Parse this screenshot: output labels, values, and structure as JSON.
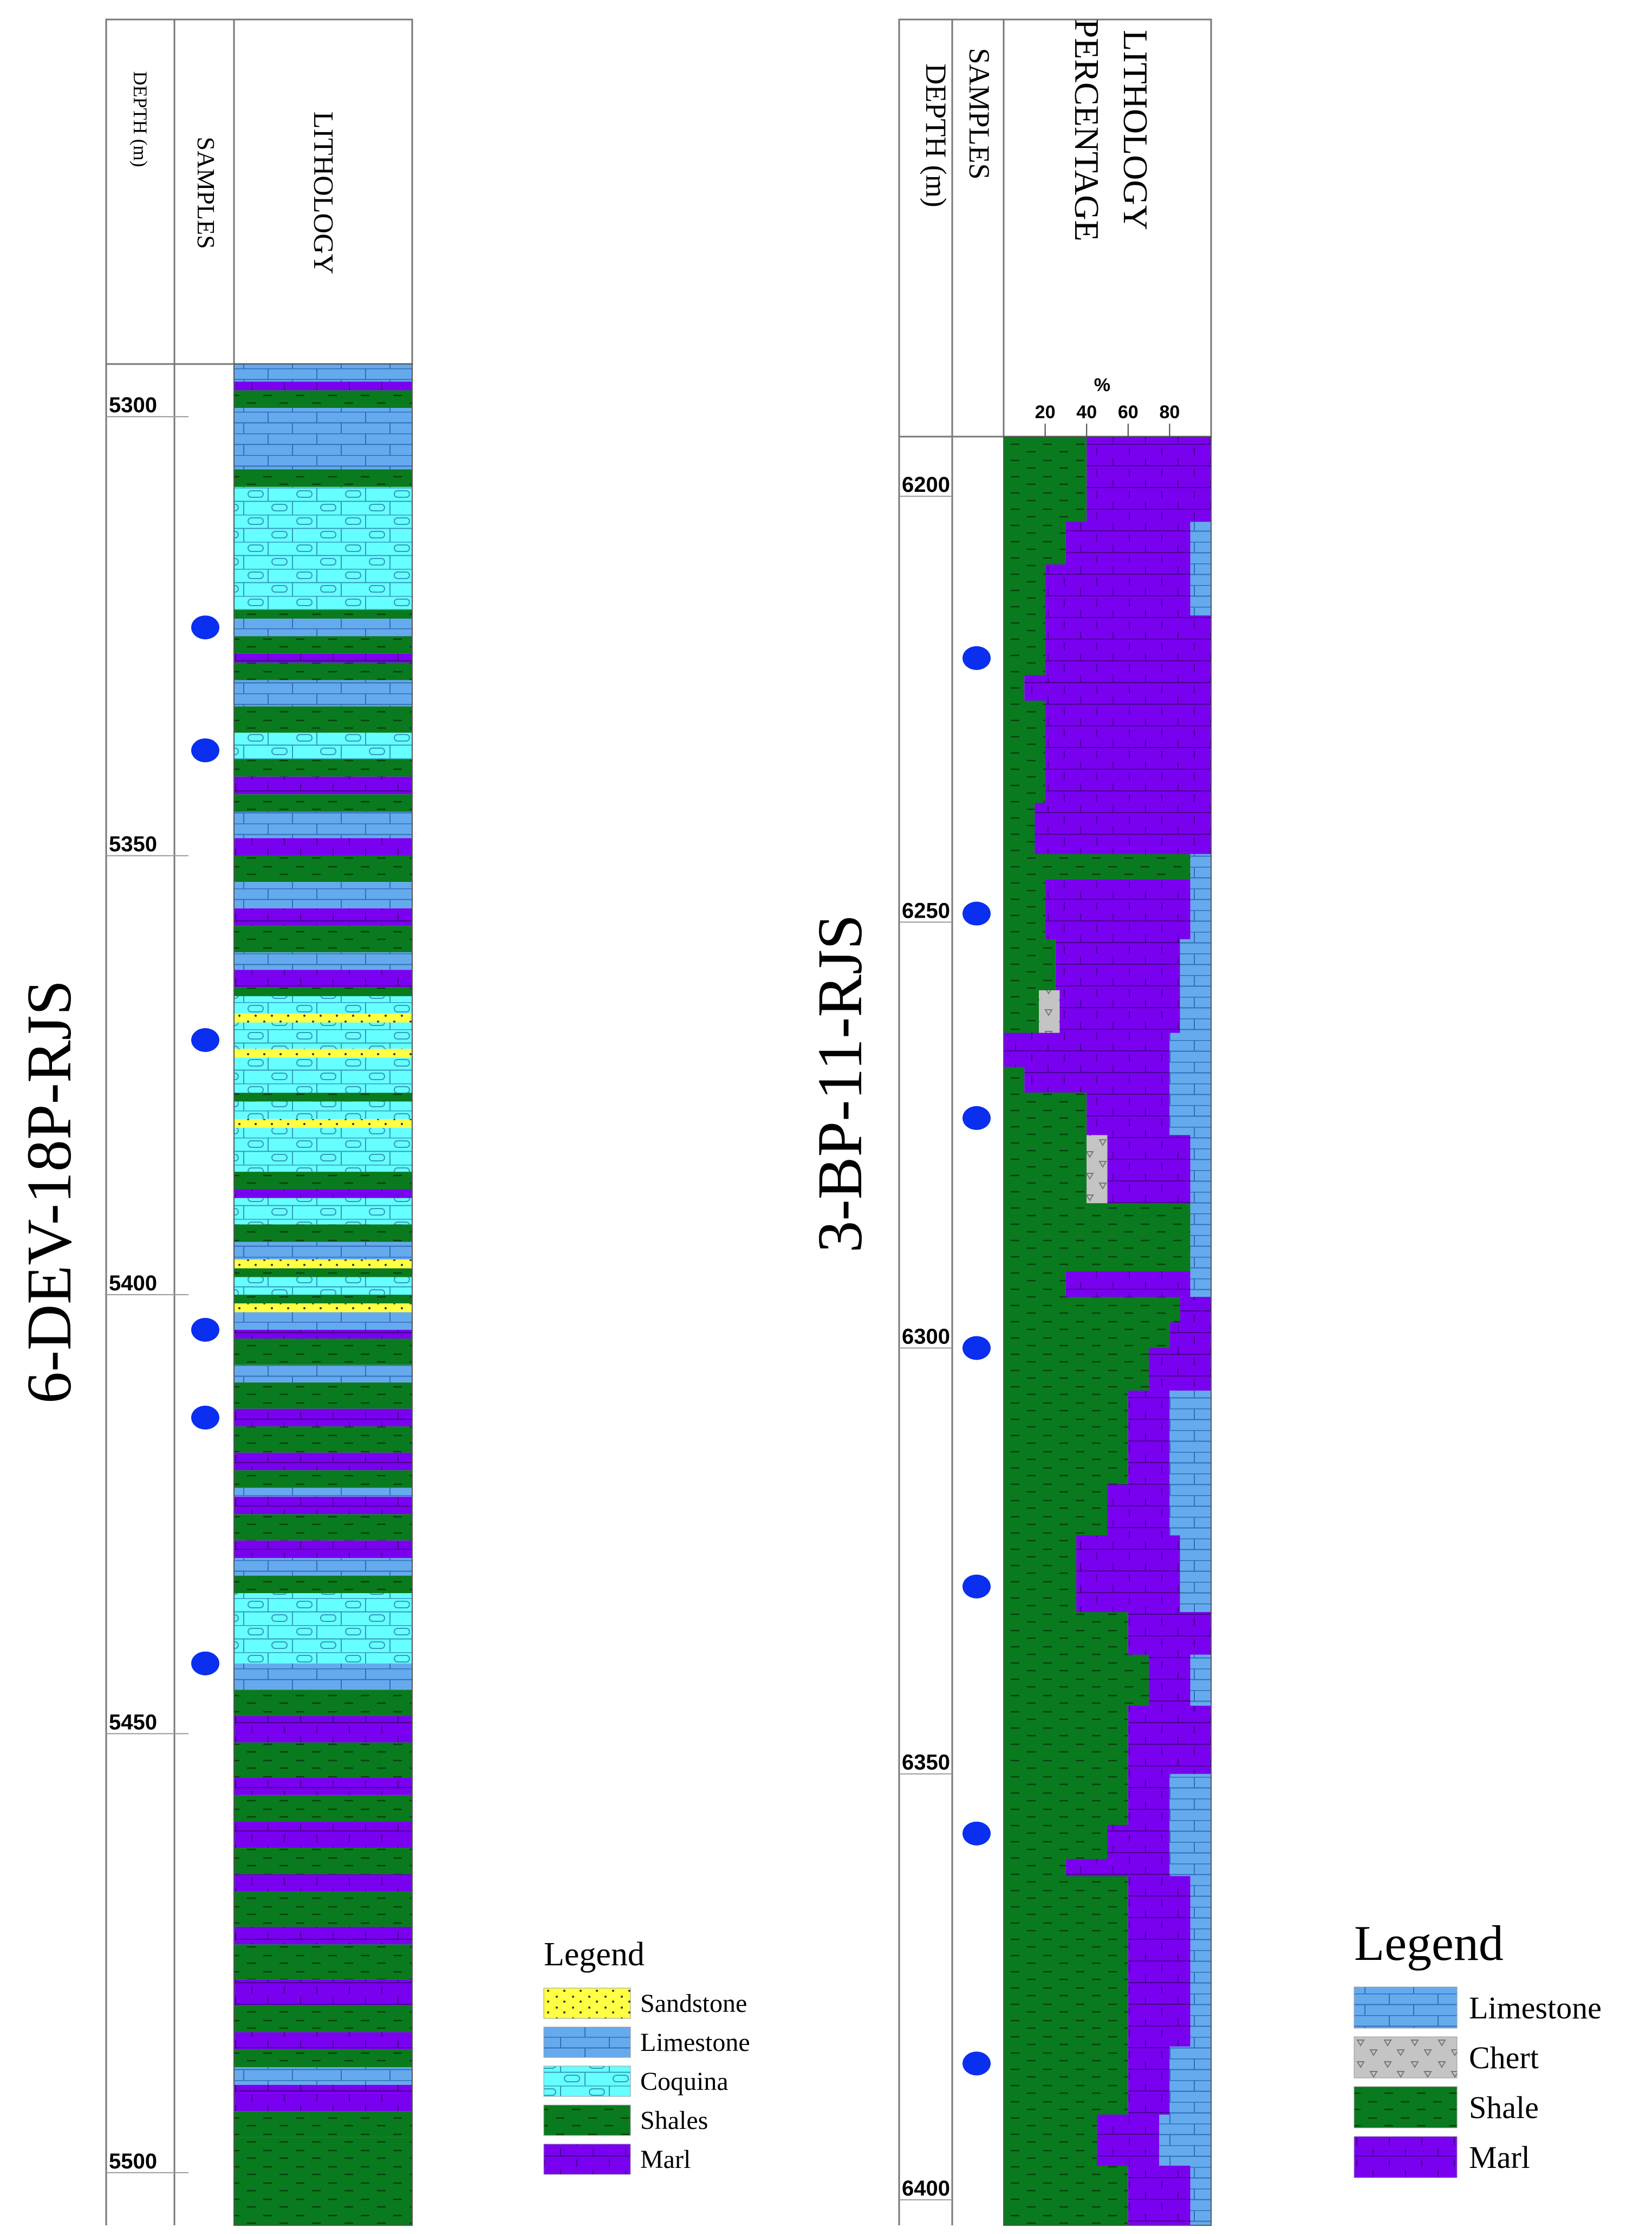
{
  "colors": {
    "sandstone": "#ffff44",
    "limestone": "#66aaee",
    "coquina": "#66ffff",
    "shale": "#0a7a1e",
    "marl": "#7a00f0",
    "chert": "#c4c4c4",
    "sample_dot": "#0a2ff0"
  },
  "well1": {
    "name": "6-DEV-18P-RJS",
    "headers": {
      "depth": "DEPTH (m)",
      "samples": "SAMPLES",
      "lithology": "LITHOLOGY"
    },
    "depth_range": [
      5294,
      5506
    ],
    "depth_ticks": [
      5300,
      5350,
      5400,
      5450,
      5500
    ],
    "samples": [
      5324,
      5338,
      5371,
      5404,
      5414,
      5442
    ],
    "layers": [
      {
        "from": 5294,
        "to": 5296,
        "lith": "limestone"
      },
      {
        "from": 5296,
        "to": 5297,
        "lith": "marl"
      },
      {
        "from": 5297,
        "to": 5299,
        "lith": "shale"
      },
      {
        "from": 5299,
        "to": 5301,
        "lith": "limestone"
      },
      {
        "from": 5301,
        "to": 5306,
        "lith": "limestone"
      },
      {
        "from": 5306,
        "to": 5308,
        "lith": "shale"
      },
      {
        "from": 5308,
        "to": 5322,
        "lith": "coquina"
      },
      {
        "from": 5322,
        "to": 5323,
        "lith": "shale"
      },
      {
        "from": 5323,
        "to": 5325,
        "lith": "limestone"
      },
      {
        "from": 5325,
        "to": 5327,
        "lith": "shale"
      },
      {
        "from": 5327,
        "to": 5328,
        "lith": "marl"
      },
      {
        "from": 5328,
        "to": 5330,
        "lith": "shale"
      },
      {
        "from": 5330,
        "to": 5333,
        "lith": "limestone"
      },
      {
        "from": 5333,
        "to": 5336,
        "lith": "shale"
      },
      {
        "from": 5336,
        "to": 5339,
        "lith": "coquina"
      },
      {
        "from": 5339,
        "to": 5341,
        "lith": "shale"
      },
      {
        "from": 5341,
        "to": 5343,
        "lith": "marl"
      },
      {
        "from": 5343,
        "to": 5345,
        "lith": "shale"
      },
      {
        "from": 5345,
        "to": 5348,
        "lith": "limestone"
      },
      {
        "from": 5348,
        "to": 5350,
        "lith": "marl"
      },
      {
        "from": 5350,
        "to": 5353,
        "lith": "shale"
      },
      {
        "from": 5353,
        "to": 5356,
        "lith": "limestone"
      },
      {
        "from": 5356,
        "to": 5358,
        "lith": "marl"
      },
      {
        "from": 5358,
        "to": 5361,
        "lith": "shale"
      },
      {
        "from": 5361,
        "to": 5363,
        "lith": "limestone"
      },
      {
        "from": 5363,
        "to": 5365,
        "lith": "marl"
      },
      {
        "from": 5365,
        "to": 5366,
        "lith": "shale"
      },
      {
        "from": 5366,
        "to": 5368,
        "lith": "coquina"
      },
      {
        "from": 5368,
        "to": 5369,
        "lith": "sandstone"
      },
      {
        "from": 5369,
        "to": 5372,
        "lith": "coquina"
      },
      {
        "from": 5372,
        "to": 5373,
        "lith": "sandstone"
      },
      {
        "from": 5373,
        "to": 5377,
        "lith": "coquina"
      },
      {
        "from": 5377,
        "to": 5378,
        "lith": "shale"
      },
      {
        "from": 5378,
        "to": 5380,
        "lith": "coquina"
      },
      {
        "from": 5380,
        "to": 5381,
        "lith": "sandstone"
      },
      {
        "from": 5381,
        "to": 5386,
        "lith": "coquina"
      },
      {
        "from": 5386,
        "to": 5388,
        "lith": "shale"
      },
      {
        "from": 5388,
        "to": 5389,
        "lith": "marl"
      },
      {
        "from": 5389,
        "to": 5392,
        "lith": "coquina"
      },
      {
        "from": 5392,
        "to": 5394,
        "lith": "shale"
      },
      {
        "from": 5394,
        "to": 5396,
        "lith": "limestone"
      },
      {
        "from": 5396,
        "to": 5397,
        "lith": "sandstone"
      },
      {
        "from": 5397,
        "to": 5398,
        "lith": "shale"
      },
      {
        "from": 5398,
        "to": 5400,
        "lith": "coquina"
      },
      {
        "from": 5400,
        "to": 5401,
        "lith": "shale"
      },
      {
        "from": 5401,
        "to": 5402,
        "lith": "sandstone"
      },
      {
        "from": 5402,
        "to": 5404,
        "lith": "limestone"
      },
      {
        "from": 5404,
        "to": 5405,
        "lith": "marl"
      },
      {
        "from": 5405,
        "to": 5408,
        "lith": "shale"
      },
      {
        "from": 5408,
        "to": 5410,
        "lith": "limestone"
      },
      {
        "from": 5410,
        "to": 5413,
        "lith": "shale"
      },
      {
        "from": 5413,
        "to": 5415,
        "lith": "marl"
      },
      {
        "from": 5415,
        "to": 5418,
        "lith": "shale"
      },
      {
        "from": 5418,
        "to": 5420,
        "lith": "marl"
      },
      {
        "from": 5420,
        "to": 5422,
        "lith": "shale"
      },
      {
        "from": 5422,
        "to": 5423,
        "lith": "limestone"
      },
      {
        "from": 5423,
        "to": 5425,
        "lith": "marl"
      },
      {
        "from": 5425,
        "to": 5428,
        "lith": "shale"
      },
      {
        "from": 5428,
        "to": 5430,
        "lith": "marl"
      },
      {
        "from": 5430,
        "to": 5432,
        "lith": "limestone"
      },
      {
        "from": 5432,
        "to": 5434,
        "lith": "shale"
      },
      {
        "from": 5434,
        "to": 5442,
        "lith": "coquina"
      },
      {
        "from": 5442,
        "to": 5445,
        "lith": "limestone"
      },
      {
        "from": 5445,
        "to": 5448,
        "lith": "shale"
      },
      {
        "from": 5448,
        "to": 5451,
        "lith": "marl"
      },
      {
        "from": 5451,
        "to": 5455,
        "lith": "shale"
      },
      {
        "from": 5455,
        "to": 5457,
        "lith": "marl"
      },
      {
        "from": 5457,
        "to": 5460,
        "lith": "shale"
      },
      {
        "from": 5460,
        "to": 5463,
        "lith": "marl"
      },
      {
        "from": 5463,
        "to": 5466,
        "lith": "shale"
      },
      {
        "from": 5466,
        "to": 5468,
        "lith": "marl"
      },
      {
        "from": 5468,
        "to": 5472,
        "lith": "shale"
      },
      {
        "from": 5472,
        "to": 5474,
        "lith": "marl"
      },
      {
        "from": 5474,
        "to": 5478,
        "lith": "shale"
      },
      {
        "from": 5478,
        "to": 5481,
        "lith": "marl"
      },
      {
        "from": 5481,
        "to": 5484,
        "lith": "shale"
      },
      {
        "from": 5484,
        "to": 5486,
        "lith": "marl"
      },
      {
        "from": 5486,
        "to": 5488,
        "lith": "shale"
      },
      {
        "from": 5488,
        "to": 5490,
        "lith": "limestone"
      },
      {
        "from": 5490,
        "to": 5493,
        "lith": "marl"
      },
      {
        "from": 5493,
        "to": 5496,
        "lith": "shale"
      },
      {
        "from": 5496,
        "to": 5506,
        "lith": "shale"
      }
    ],
    "legend": {
      "title": "Legend",
      "items": [
        {
          "lith": "sandstone",
          "label": "Sandstone"
        },
        {
          "lith": "limestone",
          "label": "Limestone"
        },
        {
          "lith": "coquina",
          "label": "Coquina"
        },
        {
          "lith": "shale",
          "label": "Shales"
        },
        {
          "lith": "marl",
          "label": "Marl"
        }
      ]
    }
  },
  "well2": {
    "name": "3-BP-11-RJS",
    "headers": {
      "depth": "DEPTH (m)",
      "samples": "SAMPLES",
      "lithology_line1": "LITHOLOGY",
      "lithology_line2": "PERCENTAGE"
    },
    "pct_axis": {
      "unit": "%",
      "ticks": [
        20,
        40,
        60,
        80
      ]
    },
    "depth_range": [
      6193,
      6403
    ],
    "depth_ticks": [
      6200,
      6250,
      6300,
      6350,
      6400
    ],
    "samples": [
      6219,
      6249,
      6273,
      6300,
      6328,
      6357,
      6384
    ],
    "profile": [
      {
        "from": 6193,
        "to": 6203,
        "shale": 40,
        "chert": 0,
        "marl": 60,
        "limestone": 0
      },
      {
        "from": 6203,
        "to": 6208,
        "shale": 30,
        "chert": 0,
        "marl": 60,
        "limestone": 10
      },
      {
        "from": 6208,
        "to": 6214,
        "shale": 20,
        "chert": 0,
        "marl": 70,
        "limestone": 10
      },
      {
        "from": 6214,
        "to": 6221,
        "shale": 20,
        "chert": 0,
        "marl": 80,
        "limestone": 0
      },
      {
        "from": 6221,
        "to": 6224,
        "shale": 10,
        "chert": 0,
        "marl": 90,
        "limestone": 0
      },
      {
        "from": 6224,
        "to": 6236,
        "shale": 20,
        "chert": 0,
        "marl": 80,
        "limestone": 0
      },
      {
        "from": 6236,
        "to": 6242,
        "shale": 15,
        "chert": 0,
        "marl": 85,
        "limestone": 0
      },
      {
        "from": 6242,
        "to": 6245,
        "shale": 90,
        "chert": 0,
        "marl": 0,
        "limestone": 10
      },
      {
        "from": 6245,
        "to": 6252,
        "shale": 20,
        "chert": 0,
        "marl": 70,
        "limestone": 10
      },
      {
        "from": 6252,
        "to": 6258,
        "shale": 25,
        "chert": 0,
        "marl": 60,
        "limestone": 15
      },
      {
        "from": 6258,
        "to": 6263,
        "shale": 17,
        "chert": 10,
        "marl": 58,
        "limestone": 15
      },
      {
        "from": 6263,
        "to": 6267,
        "shale": 0,
        "chert": 0,
        "marl": 80,
        "limestone": 20
      },
      {
        "from": 6267,
        "to": 6270,
        "shale": 10,
        "chert": 0,
        "marl": 70,
        "limestone": 20
      },
      {
        "from": 6270,
        "to": 6275,
        "shale": 40,
        "chert": 0,
        "marl": 40,
        "limestone": 20
      },
      {
        "from": 6275,
        "to": 6283,
        "shale": 40,
        "chert": 10,
        "marl": 40,
        "limestone": 10
      },
      {
        "from": 6283,
        "to": 6291,
        "shale": 90,
        "chert": 0,
        "marl": 0,
        "limestone": 10
      },
      {
        "from": 6291,
        "to": 6294,
        "shale": 30,
        "chert": 0,
        "marl": 60,
        "limestone": 10
      },
      {
        "from": 6294,
        "to": 6297,
        "shale": 85,
        "chert": 0,
        "marl": 15,
        "limestone": 0
      },
      {
        "from": 6297,
        "to": 6300,
        "shale": 80,
        "chert": 0,
        "marl": 20,
        "limestone": 0
      },
      {
        "from": 6300,
        "to": 6305,
        "shale": 70,
        "chert": 0,
        "marl": 30,
        "limestone": 0
      },
      {
        "from": 6305,
        "to": 6316,
        "shale": 60,
        "chert": 0,
        "marl": 20,
        "limestone": 20
      },
      {
        "from": 6316,
        "to": 6322,
        "shale": 50,
        "chert": 0,
        "marl": 30,
        "limestone": 20
      },
      {
        "from": 6322,
        "to": 6331,
        "shale": 35,
        "chert": 0,
        "marl": 50,
        "limestone": 15
      },
      {
        "from": 6331,
        "to": 6336,
        "shale": 60,
        "chert": 0,
        "marl": 40,
        "limestone": 0
      },
      {
        "from": 6336,
        "to": 6342,
        "shale": 70,
        "chert": 0,
        "marl": 20,
        "limestone": 10
      },
      {
        "from": 6342,
        "to": 6350,
        "shale": 60,
        "chert": 0,
        "marl": 40,
        "limestone": 0
      },
      {
        "from": 6350,
        "to": 6356,
        "shale": 60,
        "chert": 0,
        "marl": 20,
        "limestone": 20
      },
      {
        "from": 6356,
        "to": 6360,
        "shale": 50,
        "chert": 0,
        "marl": 30,
        "limestone": 20
      },
      {
        "from": 6360,
        "to": 6362,
        "shale": 30,
        "chert": 0,
        "marl": 50,
        "limestone": 20
      },
      {
        "from": 6362,
        "to": 6373,
        "shale": 60,
        "chert": 0,
        "marl": 30,
        "limestone": 10
      },
      {
        "from": 6373,
        "to": 6382,
        "shale": 60,
        "chert": 0,
        "marl": 30,
        "limestone": 10
      },
      {
        "from": 6382,
        "to": 6390,
        "shale": 60,
        "chert": 0,
        "marl": 20,
        "limestone": 20
      },
      {
        "from": 6390,
        "to": 6396,
        "shale": 45,
        "chert": 0,
        "marl": 30,
        "limestone": 25
      },
      {
        "from": 6396,
        "to": 6403,
        "shale": 60,
        "chert": 0,
        "marl": 30,
        "limestone": 10
      }
    ],
    "legend": {
      "title": "Legend",
      "items": [
        {
          "lith": "limestone",
          "label": "Limestone"
        },
        {
          "lith": "chert",
          "label": "Chert"
        },
        {
          "lith": "shale",
          "label": "Shale"
        },
        {
          "lith": "marl",
          "label": "Marl"
        }
      ]
    }
  }
}
